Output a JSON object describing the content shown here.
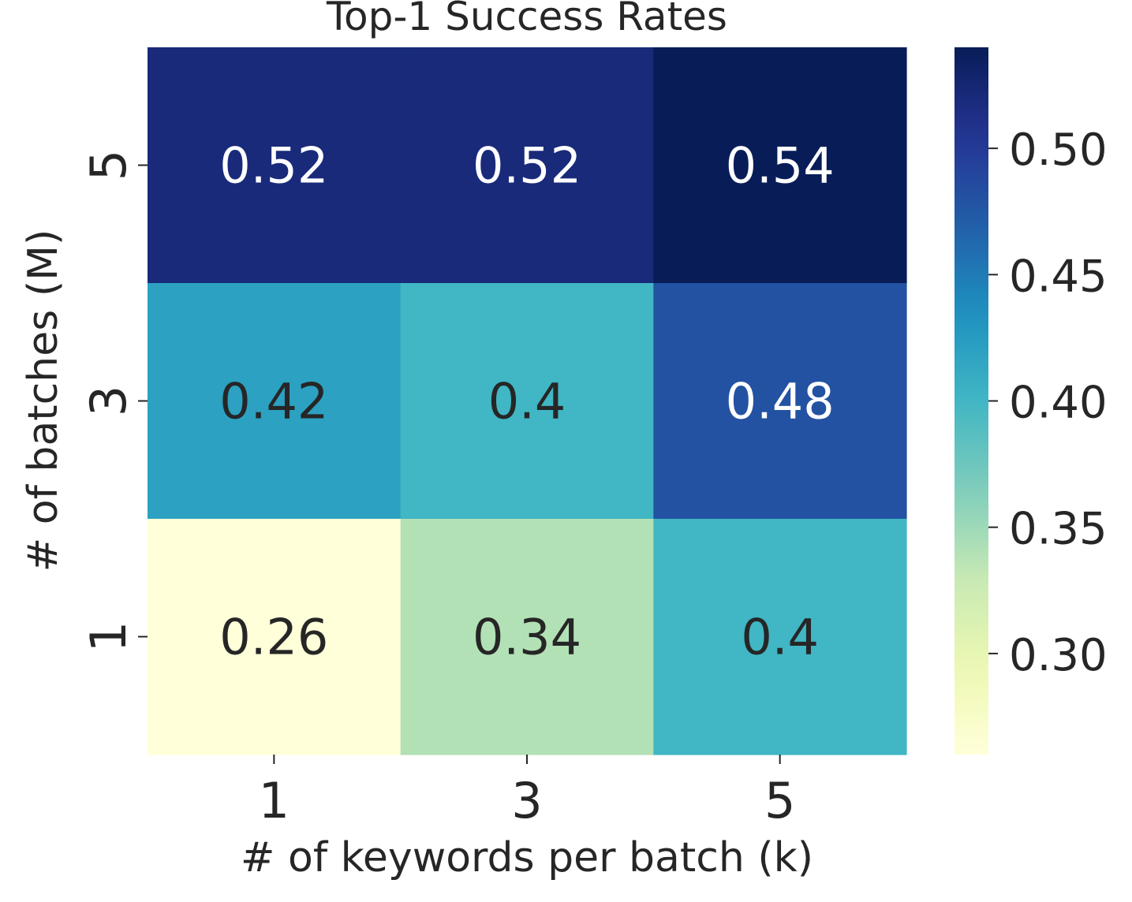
{
  "chart_data": {
    "type": "heatmap",
    "title": "Top-1 Success Rates",
    "xlabel": "# of keywords per batch (k)",
    "ylabel": "# of batches (M)",
    "x_categories": [
      "1",
      "3",
      "5"
    ],
    "y_categories": [
      "5",
      "3",
      "1"
    ],
    "values": [
      [
        0.52,
        0.52,
        0.54
      ],
      [
        0.42,
        0.4,
        0.48
      ],
      [
        0.26,
        0.34,
        0.4
      ]
    ],
    "cell_labels": [
      [
        "0.52",
        "0.52",
        "0.54"
      ],
      [
        "0.42",
        "0.4",
        "0.48"
      ],
      [
        "0.26",
        "0.34",
        "0.4"
      ]
    ],
    "colormap": "YlGnBu",
    "colorbar": {
      "vmin": 0.26,
      "vmax": 0.54,
      "ticks": [
        0.3,
        0.35,
        0.4,
        0.45,
        0.5
      ],
      "tick_labels": [
        "0.30",
        "0.35",
        "0.40",
        "0.45",
        "0.50"
      ]
    }
  }
}
